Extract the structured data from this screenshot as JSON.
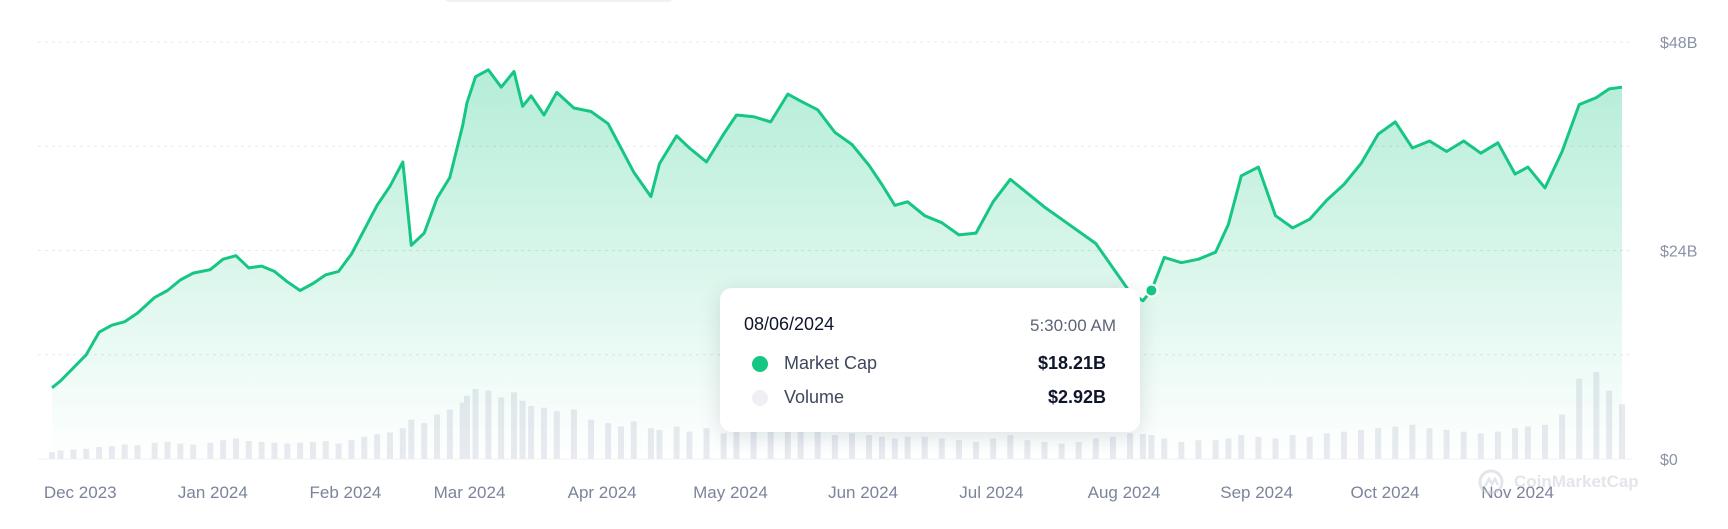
{
  "chart_data": {
    "type": "area",
    "title": "",
    "xlabel": "",
    "ylabel": "",
    "ylim": [
      0,
      48
    ],
    "y_unit": "B",
    "y_ticks": [
      "$48B",
      "$24B",
      "$0"
    ],
    "x_tick_labels": [
      "Dec 2023",
      "Jan 2024",
      "Feb 2024",
      "Mar 2024",
      "Apr 2024",
      "May 2024",
      "Jun 2024",
      "Jul 2024",
      "Aug 2024",
      "Sep 2024",
      "Oct 2024",
      "Nov 2024"
    ],
    "x_start": "2023-11-23",
    "x_end": "2024-11-24",
    "grid": "horizontal dashed",
    "series": [
      {
        "name": "Market Cap",
        "color": "#16c784",
        "x": [
          "2023-11-23",
          "2023-11-25",
          "2023-11-28",
          "2023-12-01",
          "2023-12-04",
          "2023-12-07",
          "2023-12-10",
          "2023-12-13",
          "2023-12-17",
          "2023-12-20",
          "2023-12-23",
          "2023-12-26",
          "2023-12-30",
          "2024-01-02",
          "2024-01-05",
          "2024-01-08",
          "2024-01-11",
          "2024-01-14",
          "2024-01-17",
          "2024-01-20",
          "2024-01-23",
          "2024-01-26",
          "2024-01-29",
          "2024-02-01",
          "2024-02-04",
          "2024-02-07",
          "2024-02-10",
          "2024-02-13",
          "2024-02-15",
          "2024-02-18",
          "2024-02-21",
          "2024-02-24",
          "2024-02-27",
          "2024-02-28",
          "2024-03-01",
          "2024-03-04",
          "2024-03-07",
          "2024-03-10",
          "2024-03-12",
          "2024-03-14",
          "2024-03-17",
          "2024-03-20",
          "2024-03-24",
          "2024-03-28",
          "2024-04-01",
          "2024-04-04",
          "2024-04-07",
          "2024-04-11",
          "2024-04-13",
          "2024-04-17",
          "2024-04-20",
          "2024-04-24",
          "2024-04-28",
          "2024-05-01",
          "2024-05-05",
          "2024-05-09",
          "2024-05-13",
          "2024-05-16",
          "2024-05-20",
          "2024-05-24",
          "2024-05-28",
          "2024-06-01",
          "2024-06-04",
          "2024-06-07",
          "2024-06-10",
          "2024-06-14",
          "2024-06-18",
          "2024-06-22",
          "2024-06-26",
          "2024-06-30",
          "2024-07-04",
          "2024-07-08",
          "2024-07-12",
          "2024-07-16",
          "2024-07-20",
          "2024-07-24",
          "2024-07-28",
          "2024-08-01",
          "2024-08-04",
          "2024-08-06",
          "2024-08-09",
          "2024-08-13",
          "2024-08-17",
          "2024-08-21",
          "2024-08-24",
          "2024-08-27",
          "2024-08-31",
          "2024-09-04",
          "2024-09-08",
          "2024-09-12",
          "2024-09-16",
          "2024-09-20",
          "2024-09-24",
          "2024-09-28",
          "2024-10-02",
          "2024-10-06",
          "2024-10-10",
          "2024-10-14",
          "2024-10-18",
          "2024-10-22",
          "2024-10-26",
          "2024-10-30",
          "2024-11-02",
          "2024-11-06",
          "2024-11-10",
          "2024-11-14",
          "2024-11-18",
          "2024-11-21",
          "2024-11-24"
        ],
        "values": [
          8.2,
          9.0,
          10.5,
          12.0,
          14.6,
          15.4,
          15.8,
          16.8,
          18.6,
          19.4,
          20.6,
          21.4,
          21.8,
          23.0,
          23.4,
          22.0,
          22.2,
          21.6,
          20.4,
          19.4,
          20.2,
          21.2,
          21.6,
          23.6,
          26.4,
          29.2,
          31.4,
          34.2,
          24.6,
          26.0,
          30.0,
          32.4,
          38.4,
          41.0,
          44.0,
          44.8,
          42.8,
          44.6,
          40.6,
          41.8,
          39.6,
          42.2,
          40.4,
          40.0,
          38.6,
          35.8,
          33.0,
          30.2,
          34.0,
          37.2,
          35.8,
          34.2,
          37.4,
          39.6,
          39.4,
          38.8,
          42.0,
          41.2,
          40.2,
          37.6,
          36.2,
          33.8,
          31.6,
          29.2,
          29.6,
          28.0,
          27.2,
          25.8,
          26.0,
          29.6,
          32.2,
          30.6,
          29.0,
          27.6,
          26.2,
          24.8,
          22.0,
          19.2,
          18.21,
          19.4,
          23.2,
          22.6,
          23.0,
          23.8,
          27.0,
          32.6,
          33.6,
          28.0,
          26.6,
          27.6,
          29.8,
          31.6,
          34.0,
          37.4,
          38.8,
          35.8,
          36.6,
          35.4,
          36.6,
          35.2,
          36.4,
          32.8,
          33.6,
          31.2,
          35.4,
          40.8,
          41.6,
          42.6,
          42.8
        ]
      },
      {
        "name": "Volume",
        "color": "#e8eaf0",
        "values": [
          0.8,
          1.0,
          1.1,
          1.2,
          1.4,
          1.5,
          1.7,
          1.6,
          1.9,
          2.0,
          1.8,
          1.7,
          1.9,
          2.2,
          2.4,
          2.1,
          2.0,
          1.9,
          1.8,
          1.9,
          2.0,
          2.1,
          1.8,
          2.2,
          2.6,
          2.9,
          3.1,
          3.6,
          4.6,
          4.2,
          5.2,
          5.8,
          6.6,
          7.4,
          8.2,
          8.0,
          7.2,
          7.8,
          6.8,
          6.2,
          6.0,
          5.6,
          5.8,
          4.6,
          4.2,
          3.8,
          4.4,
          3.6,
          3.4,
          3.8,
          3.2,
          3.6,
          3.0,
          3.4,
          4.0,
          3.6,
          3.2,
          3.6,
          3.2,
          2.8,
          3.0,
          2.8,
          2.6,
          2.4,
          2.6,
          2.6,
          2.4,
          2.2,
          2.0,
          2.4,
          2.8,
          2.2,
          2.0,
          1.8,
          2.0,
          2.4,
          2.6,
          3.0,
          2.92,
          2.8,
          2.4,
          2.0,
          2.2,
          2.2,
          2.4,
          2.8,
          2.6,
          2.4,
          2.8,
          2.6,
          3.0,
          3.2,
          3.4,
          3.6,
          3.8,
          4.0,
          3.6,
          3.4,
          3.2,
          3.0,
          3.2,
          3.6,
          3.8,
          4.0,
          5.2,
          9.4,
          10.2,
          8.0,
          6.4
        ]
      }
    ]
  },
  "tooltip": {
    "date": "08/06/2024",
    "time": "5:30:00 AM",
    "rows": [
      {
        "label": "Market Cap",
        "value": "$18.21B",
        "color": "#16c784"
      },
      {
        "label": "Volume",
        "value": "$2.92B",
        "color": "#eef0f4"
      }
    ]
  },
  "watermark": {
    "text": "CoinMarketCap",
    "icon": "coinmarketcap-logo-icon"
  }
}
